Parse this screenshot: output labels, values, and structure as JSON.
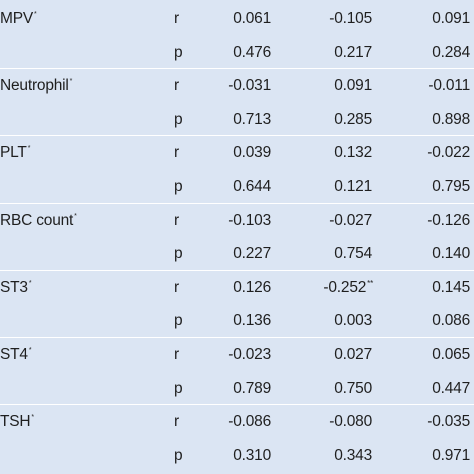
{
  "rows": [
    {
      "variable": "MPV",
      "mark": "*",
      "stat": "r",
      "v1": "0.061",
      "v2": "-0.105",
      "v2_mark": "",
      "v3": "0.091"
    },
    {
      "variable": "",
      "mark": "",
      "stat": "p",
      "v1": "0.476",
      "v2": "0.217",
      "v2_mark": "",
      "v3": "0.284"
    },
    {
      "variable": "Neutrophil",
      "mark": "*",
      "stat": "r",
      "v1": "-0.031",
      "v2": "0.091",
      "v2_mark": "",
      "v3": "-0.011"
    },
    {
      "variable": "",
      "mark": "",
      "stat": "p",
      "v1": "0.713",
      "v2": "0.285",
      "v2_mark": "",
      "v3": "0.898"
    },
    {
      "variable": "PLT",
      "mark": "*",
      "stat": "r",
      "v1": "0.039",
      "v2": "0.132",
      "v2_mark": "",
      "v3": "-0.022"
    },
    {
      "variable": "",
      "mark": "",
      "stat": "p",
      "v1": "0.644",
      "v2": "0.121",
      "v2_mark": "",
      "v3": "0.795"
    },
    {
      "variable": "RBC count",
      "mark": "*",
      "stat": "r",
      "v1": "-0.103",
      "v2": "-0.027",
      "v2_mark": "",
      "v3": "-0.126"
    },
    {
      "variable": "",
      "mark": "",
      "stat": "p",
      "v1": "0.227",
      "v2": "0.754",
      "v2_mark": "",
      "v3": "0.140"
    },
    {
      "variable": "ST3",
      "mark": "*",
      "stat": "r",
      "v1": "0.126",
      "v2": "-0.252",
      "v2_mark": "**",
      "v3": "0.145"
    },
    {
      "variable": "",
      "mark": "",
      "stat": "p",
      "v1": "0.136",
      "v2": "0.003",
      "v2_mark": "",
      "v3": "0.086"
    },
    {
      "variable": "ST4",
      "mark": "*",
      "stat": "r",
      "v1": "-0.023",
      "v2": "0.027",
      "v2_mark": "",
      "v3": "0.065"
    },
    {
      "variable": "",
      "mark": "",
      "stat": "p",
      "v1": "0.789",
      "v2": "0.750",
      "v2_mark": "",
      "v3": "0.447"
    },
    {
      "variable": "TSH",
      "mark": "*",
      "stat": "r",
      "v1": "-0.086",
      "v2": "-0.080",
      "v2_mark": "",
      "v3": "-0.035"
    },
    {
      "variable": "",
      "mark": "",
      "stat": "p",
      "v1": "0.310",
      "v2": "0.343",
      "v2_mark": "",
      "v3": "0.971"
    }
  ],
  "colors": {
    "background": "#dbe5f3",
    "divider": "#ffffff",
    "text": "#1f1f1f"
  }
}
